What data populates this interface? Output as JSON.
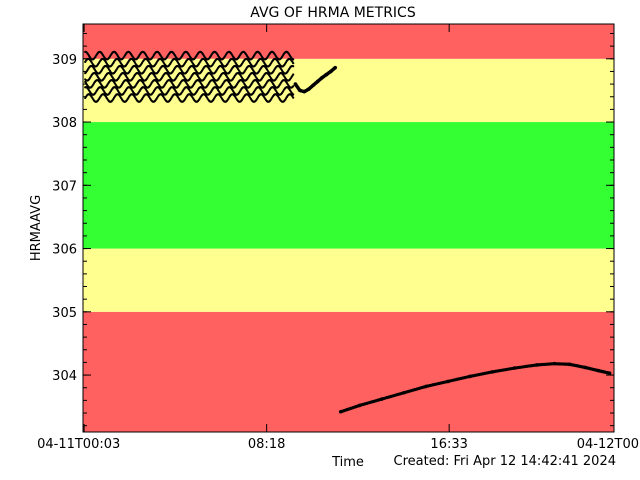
{
  "chart_data": {
    "type": "scatter",
    "title": "AVG OF HRMA METRICS",
    "xlabel": "Time",
    "ylabel": "HRMAAVG",
    "created": "Created: Fri Apr 12 14:42:41 2024",
    "xlim": [
      0,
      24
    ],
    "ylim": [
      303.1,
      309.55
    ],
    "x_ticks": [
      {
        "value": 0.05,
        "label": "04-11T00:03"
      },
      {
        "value": 8.3,
        "label": "08:18"
      },
      {
        "value": 16.55,
        "label": "16:33"
      },
      {
        "value": 24,
        "label": "04-12T00"
      }
    ],
    "y_ticks": [
      {
        "value": 304,
        "label": "304"
      },
      {
        "value": 305,
        "label": "305"
      },
      {
        "value": 306,
        "label": "306"
      },
      {
        "value": 307,
        "label": "307"
      },
      {
        "value": 308,
        "label": "308"
      },
      {
        "value": 309,
        "label": "309"
      }
    ],
    "bands": [
      {
        "from": 303.1,
        "to": 305,
        "color": "#ff6060"
      },
      {
        "from": 305,
        "to": 306,
        "color": "#ffff90"
      },
      {
        "from": 306,
        "to": 308,
        "color": "#33ff33"
      },
      {
        "from": 308,
        "to": 309,
        "color": "#ffff90"
      },
      {
        "from": 309,
        "to": 309.55,
        "color": "#ff6060"
      }
    ],
    "series": [
      {
        "marker_color": "#000000",
        "noisy_segment": {
          "x_start": 0.1,
          "x_end": 9.5,
          "y_low": 308.38,
          "y_high": 309.05
        },
        "points": [
          [
            9.6,
            308.6
          ],
          [
            9.8,
            308.5
          ],
          [
            10.0,
            308.48
          ],
          [
            10.2,
            308.52
          ],
          [
            10.4,
            308.58
          ],
          [
            10.6,
            308.64
          ],
          [
            10.8,
            308.7
          ],
          [
            11.0,
            308.75
          ],
          [
            11.2,
            308.8
          ],
          [
            11.4,
            308.86
          ],
          [
            11.65,
            303.42
          ],
          [
            12.5,
            303.52
          ],
          [
            13.5,
            303.62
          ],
          [
            14.5,
            303.72
          ],
          [
            15.5,
            303.82
          ],
          [
            16.5,
            303.9
          ],
          [
            17.5,
            303.98
          ],
          [
            18.5,
            304.05
          ],
          [
            19.5,
            304.11
          ],
          [
            20.5,
            304.16
          ],
          [
            21.3,
            304.18
          ],
          [
            22.0,
            304.17
          ],
          [
            22.7,
            304.12
          ],
          [
            23.3,
            304.07
          ],
          [
            23.8,
            304.03
          ]
        ]
      }
    ]
  }
}
